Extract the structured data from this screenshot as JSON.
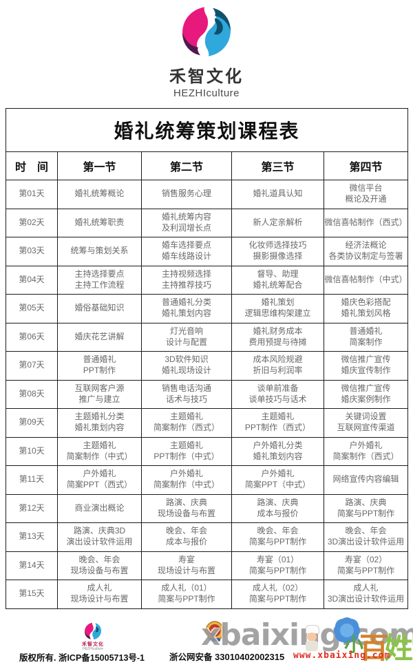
{
  "brand": {
    "name_cn": "禾智文化",
    "name_en": "HEZHIculture"
  },
  "table": {
    "title": "婚礼统筹策划课程表",
    "columns": [
      "时　间",
      "第一节",
      "第二节",
      "第三节",
      "第四节"
    ],
    "rows": [
      {
        "day": "第01天",
        "cells": [
          [
            "婚礼统筹概论"
          ],
          [
            "销售服务心理"
          ],
          [
            "婚礼道具认知"
          ],
          [
            "微信平台",
            "概论及开通"
          ]
        ]
      },
      {
        "day": "第02天",
        "cells": [
          [
            "婚礼统筹职责"
          ],
          [
            "婚礼统筹内容",
            "及利润增长点"
          ],
          [
            "新人定亲解析"
          ],
          [
            "微信喜帖制作（西式）"
          ]
        ]
      },
      {
        "day": "第03天",
        "cells": [
          [
            "统筹与策划关系"
          ],
          [
            "婚车选择要点",
            "婚车线路设计"
          ],
          [
            "化妆师选择技巧",
            "摄影摄像选择"
          ],
          [
            "经济法概论",
            "各类协议制定与签署"
          ]
        ]
      },
      {
        "day": "第04天",
        "cells": [
          [
            "主持选择要点",
            "主持工作流程"
          ],
          [
            "主持视频选择",
            "主持推荐技巧"
          ],
          [
            "督导、助理",
            "婚礼统筹配合"
          ],
          [
            "微信喜帖制作（中式）"
          ]
        ]
      },
      {
        "day": "第05天",
        "cells": [
          [
            "婚俗基础知识"
          ],
          [
            "普通婚礼分类",
            "婚礼策划内容"
          ],
          [
            "婚礼策划",
            "逻辑思维构架建立"
          ],
          [
            "婚庆色彩搭配",
            "婚礼策划风格"
          ]
        ]
      },
      {
        "day": "第06天",
        "cells": [
          [
            "婚庆花艺讲解"
          ],
          [
            "灯光音响",
            "设计与配置"
          ],
          [
            "婚礼财务成本",
            "费用预提与待摊"
          ],
          [
            "普通婚礼",
            "简案制作"
          ]
        ]
      },
      {
        "day": "第07天",
        "cells": [
          [
            "普通婚礼",
            "PPT制作"
          ],
          [
            "3D软件知识",
            "婚礼现场设计"
          ],
          [
            "成本风险规避",
            "折旧与利润率"
          ],
          [
            "微信推广宣传",
            "婚庆宣传制作"
          ]
        ]
      },
      {
        "day": "第08天",
        "cells": [
          [
            "互联网客户源",
            "推广与建立"
          ],
          [
            "销售电话沟通",
            "话术与技巧"
          ],
          [
            "谈单前准备",
            "谈单技巧与话术"
          ],
          [
            "微信推广宣传",
            "婚庆案例制作"
          ]
        ]
      },
      {
        "day": "第09天",
        "cells": [
          [
            "主题婚礼分类",
            "婚礼策划内容"
          ],
          [
            "主题婚礼",
            "简案制作（西式）"
          ],
          [
            "主题婚礼",
            "PPT制作（西式）"
          ],
          [
            "关键词设置",
            "互联网宣传渠道"
          ]
        ]
      },
      {
        "day": "第10天",
        "cells": [
          [
            "主题婚礼",
            "简案制作（中式）"
          ],
          [
            "主题婚礼",
            "PPT制作（中式）"
          ],
          [
            "户外婚礼分类",
            "婚礼策划内容"
          ],
          [
            "户外婚礼",
            "简案制作（西式）"
          ]
        ]
      },
      {
        "day": "第11天",
        "cells": [
          [
            "户外婚礼",
            "简案PPT（西式）"
          ],
          [
            "户外婚礼",
            "简案制作（中式）"
          ],
          [
            "户外婚礼",
            "简案PPT（中式）"
          ],
          [
            "网络宣传内容编辑"
          ]
        ]
      },
      {
        "day": "第12天",
        "cells": [
          [
            "商业演出概论"
          ],
          [
            "路演、庆典",
            "现场设备与布置"
          ],
          [
            "路演、庆典",
            "成本与报价"
          ],
          [
            "路演、庆典",
            "简案与PPT制作"
          ]
        ]
      },
      {
        "day": "第13天",
        "cells": [
          [
            "路演、庆典3D",
            "演出设计软件运用"
          ],
          [
            "晚会、年会",
            "成本与报价"
          ],
          [
            "晚会、年会",
            "简案与PPT制作"
          ],
          [
            "晚会、年会",
            "3D演出设计软件运用"
          ]
        ]
      },
      {
        "day": "第14天",
        "cells": [
          [
            "晚会、年会",
            "现场设备与布置"
          ],
          [
            "寿宴",
            "现场设计与布置"
          ],
          [
            "寿宴（01）",
            "简案与PPT制作"
          ],
          [
            "寿宴（02）",
            "简案与PPT制作"
          ]
        ]
      },
      {
        "day": "第15天",
        "cells": [
          [
            "成人礼",
            "现场设计与布置"
          ],
          [
            "成人礼（01）",
            "简案与PPT制作"
          ],
          [
            "成人礼（02）",
            "简案与PPT制作"
          ],
          [
            "成人礼",
            "3D演出设计软件运用"
          ]
        ]
      }
    ]
  },
  "footer": {
    "mini_brand_cn": "禾智文化",
    "mini_brand_en": "HEZHIculture",
    "copyright": "版权所有. 浙ICP备15005713号-1",
    "security_label": "浙公网安备",
    "security_number": "33010402002315"
  },
  "watermark": {
    "big_text": "xbaixing.com",
    "url": "www.xbaixing.com",
    "site_chars": [
      "小",
      "百",
      "姓"
    ]
  },
  "colors": {
    "logo_magenta": "#E8197D",
    "logo_purple": "#4E1A4E",
    "logo_blue": "#2FA8DC",
    "logo_teal": "#10506B",
    "watermark_red": "#E02B20"
  }
}
